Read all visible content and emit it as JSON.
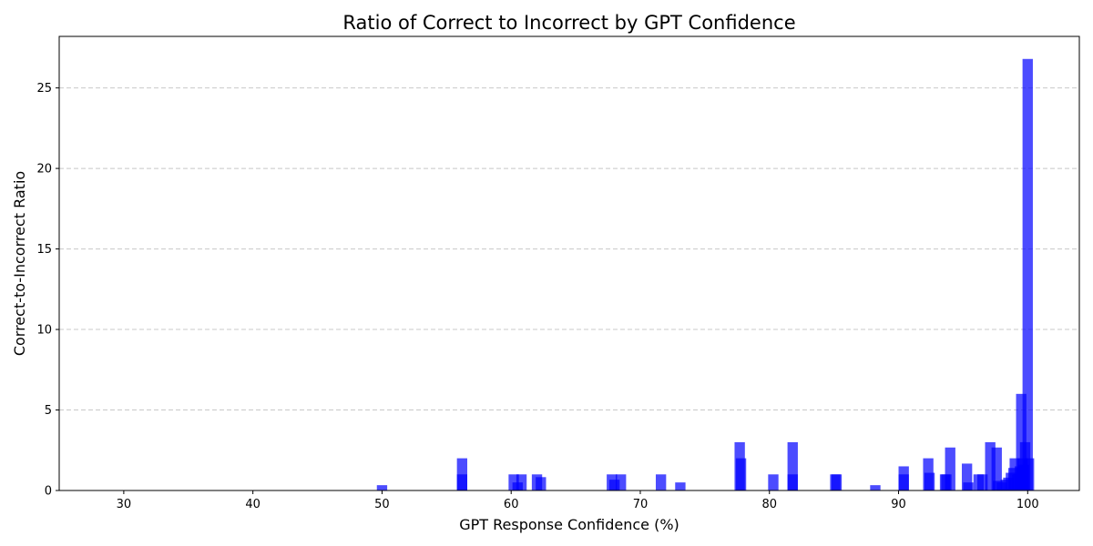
{
  "chart_data": {
    "type": "bar",
    "title": "Ratio of Correct to Incorrect by GPT Confidence",
    "xlabel": "GPT Response Confidence (%)",
    "ylabel": "Correct-to-Incorrect Ratio",
    "xlim": [
      25,
      104
    ],
    "ylim": [
      0,
      28.2
    ],
    "xticks": [
      30,
      40,
      50,
      60,
      70,
      80,
      90,
      100
    ],
    "yticks": [
      0,
      5,
      10,
      15,
      20,
      25
    ],
    "grid": "y-dashed",
    "bar_color": "#0000ff",
    "bar_opacity": 0.7,
    "bar_width": 0.8,
    "series": [
      {
        "x": [
          50.0,
          56.2,
          56.2,
          60.2,
          60.5,
          60.8,
          62.0,
          62.3,
          67.8,
          68.0,
          68.5,
          71.6,
          73.1,
          77.7,
          77.8,
          80.3,
          81.8,
          81.8,
          85.1,
          85.2,
          88.2,
          90.4,
          90.4,
          92.3,
          92.4,
          93.6,
          93.7,
          94.0,
          95.3,
          95.4,
          96.2,
          96.5,
          97.1,
          97.6,
          97.7,
          98.0,
          98.3,
          98.5,
          98.7,
          98.9,
          99.0,
          99.2,
          99.4,
          99.5,
          99.6,
          99.7,
          99.8,
          100.0,
          100.1
        ],
        "values": [
          0.33,
          2.0,
          1.0,
          1.0,
          0.5,
          1.0,
          1.0,
          0.83,
          1.0,
          0.67,
          1.0,
          1.0,
          0.5,
          3.0,
          2.0,
          1.0,
          3.0,
          1.0,
          1.0,
          1.0,
          0.33,
          1.5,
          1.0,
          2.0,
          1.1,
          1.0,
          1.0,
          2.67,
          1.67,
          0.5,
          1.0,
          1.0,
          3.0,
          2.67,
          0.6,
          0.5,
          0.67,
          0.8,
          1.1,
          1.4,
          2.0,
          1.0,
          1.5,
          6.0,
          2.0,
          1.6,
          3.0,
          26.8,
          2.0
        ]
      }
    ]
  }
}
